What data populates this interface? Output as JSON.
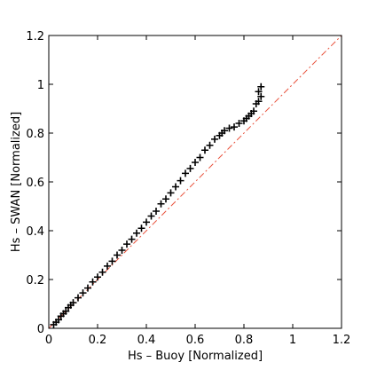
{
  "chart_data": {
    "type": "scatter",
    "title": "",
    "xlabel": "Hs – Buoy [Normalized]",
    "ylabel": "Hs – SWAN [Normalized]",
    "xlim": [
      0,
      1.2
    ],
    "ylim": [
      0,
      1.2
    ],
    "xticks": [
      "0",
      "0.2",
      "0.4",
      "0.6",
      "0.8",
      "1",
      "1.2"
    ],
    "yticks": [
      "0",
      "0.2",
      "0.4",
      "0.6",
      "0.8",
      "1",
      "1.2"
    ],
    "grid": false,
    "legend": "none",
    "marker": "+",
    "marker_color": "#000000",
    "series": [
      {
        "values": [
          [
            0.02,
            0.015
          ],
          [
            0.03,
            0.025
          ],
          [
            0.04,
            0.035
          ],
          [
            0.05,
            0.05
          ],
          [
            0.06,
            0.06
          ],
          [
            0.07,
            0.07
          ],
          [
            0.08,
            0.085
          ],
          [
            0.09,
            0.095
          ],
          [
            0.1,
            0.105
          ],
          [
            0.12,
            0.125
          ],
          [
            0.14,
            0.145
          ],
          [
            0.16,
            0.165
          ],
          [
            0.18,
            0.19
          ],
          [
            0.2,
            0.21
          ],
          [
            0.22,
            0.23
          ],
          [
            0.24,
            0.255
          ],
          [
            0.26,
            0.275
          ],
          [
            0.28,
            0.3
          ],
          [
            0.3,
            0.32
          ],
          [
            0.32,
            0.345
          ],
          [
            0.34,
            0.365
          ],
          [
            0.36,
            0.39
          ],
          [
            0.38,
            0.41
          ],
          [
            0.4,
            0.435
          ],
          [
            0.42,
            0.46
          ],
          [
            0.44,
            0.48
          ],
          [
            0.46,
            0.51
          ],
          [
            0.48,
            0.53
          ],
          [
            0.5,
            0.555
          ],
          [
            0.52,
            0.58
          ],
          [
            0.54,
            0.605
          ],
          [
            0.56,
            0.635
          ],
          [
            0.58,
            0.655
          ],
          [
            0.6,
            0.68
          ],
          [
            0.62,
            0.7
          ],
          [
            0.64,
            0.73
          ],
          [
            0.66,
            0.75
          ],
          [
            0.68,
            0.775
          ],
          [
            0.7,
            0.79
          ],
          [
            0.71,
            0.8
          ],
          [
            0.72,
            0.81
          ],
          [
            0.74,
            0.82
          ],
          [
            0.76,
            0.825
          ],
          [
            0.78,
            0.84
          ],
          [
            0.8,
            0.85
          ],
          [
            0.81,
            0.86
          ],
          [
            0.82,
            0.87
          ],
          [
            0.83,
            0.88
          ],
          [
            0.84,
            0.89
          ],
          [
            0.85,
            0.92
          ],
          [
            0.86,
            0.93
          ],
          [
            0.87,
            0.95
          ],
          [
            0.86,
            0.97
          ],
          [
            0.87,
            0.99
          ]
        ]
      }
    ],
    "reference_line": {
      "label": "",
      "x": [
        0,
        1.2
      ],
      "y": [
        0,
        1.2
      ],
      "color": "#e8503a",
      "style": "dash-dot"
    }
  }
}
